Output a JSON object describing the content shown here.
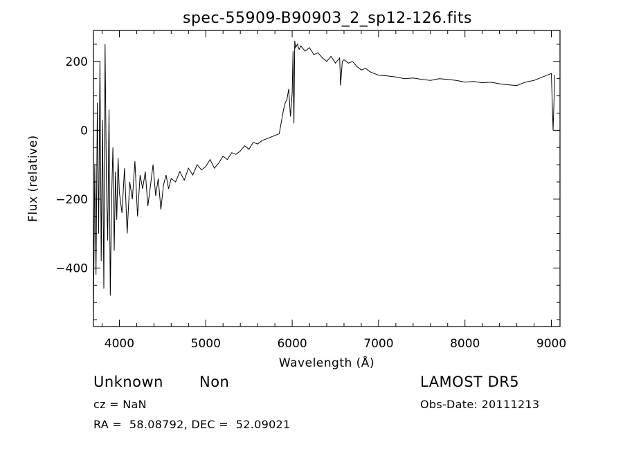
{
  "chart_data": {
    "type": "line",
    "title": "spec-55909-B90903_2_sp12-126.fits",
    "xlabel": "Wavelength (Å)",
    "ylabel": "Flux (relative)",
    "xlim": [
      3700,
      9100
    ],
    "ylim": [
      -570,
      290
    ],
    "xticks": [
      4000,
      5000,
      6000,
      7000,
      8000,
      9000
    ],
    "yticks": [
      -400,
      -200,
      0,
      200
    ],
    "series": [
      {
        "x": [
          3700,
          3715,
          3730,
          3745,
          3760,
          3775,
          3790,
          3805,
          3820,
          3835,
          3850,
          3865,
          3880,
          3895,
          3910,
          3925,
          3940,
          3955,
          3970,
          3985,
          4000,
          4030,
          4060,
          4090,
          4120,
          4150,
          4180,
          4210,
          4240,
          4270,
          4300,
          4330,
          4360,
          4390,
          4420,
          4450,
          4480,
          4510,
          4540,
          4570,
          4600,
          4650,
          4700,
          4750,
          4800,
          4850,
          4900,
          4950,
          5000,
          5050,
          5100,
          5150,
          5200,
          5250,
          5300,
          5350,
          5400,
          5450,
          5500,
          5550,
          5600,
          5650,
          5700,
          5750,
          5800,
          5850,
          5900,
          5920,
          5940,
          5960,
          5980,
          6000,
          6010,
          6020,
          6030,
          6040,
          6060,
          6080,
          6100,
          6150,
          6200,
          6250,
          6300,
          6350,
          6400,
          6450,
          6500,
          6550,
          6560,
          6580,
          6600,
          6650,
          6700,
          6750,
          6800,
          6850,
          6900,
          6950,
          7000,
          7100,
          7200,
          7300,
          7400,
          7500,
          7600,
          7700,
          7800,
          7900,
          8000,
          8100,
          8200,
          8300,
          8400,
          8500,
          8600,
          8700,
          8800,
          8900,
          9000,
          9020,
          9040
        ],
        "y": [
          -540,
          -100,
          -420,
          80,
          -300,
          200,
          -380,
          30,
          -460,
          250,
          -150,
          -320,
          60,
          -480,
          -200,
          -50,
          -350,
          -120,
          -260,
          -80,
          -180,
          -240,
          -110,
          -300,
          -150,
          -200,
          -90,
          -250,
          -130,
          -170,
          -120,
          -220,
          -160,
          -100,
          -190,
          -140,
          -230,
          -160,
          -130,
          -170,
          -140,
          -150,
          -120,
          -145,
          -110,
          -130,
          -100,
          -115,
          -105,
          -85,
          -110,
          -95,
          -75,
          -85,
          -65,
          -70,
          -60,
          -45,
          -55,
          -35,
          -40,
          -30,
          -25,
          -20,
          -15,
          -10,
          60,
          80,
          90,
          120,
          40,
          110,
          230,
          20,
          260,
          240,
          250,
          235,
          245,
          230,
          240,
          220,
          225,
          210,
          200,
          215,
          195,
          210,
          130,
          200,
          205,
          195,
          200,
          185,
          175,
          180,
          170,
          165,
          160,
          158,
          155,
          150,
          152,
          148,
          145,
          150,
          148,
          145,
          140,
          142,
          138,
          140,
          135,
          132,
          130,
          140,
          145,
          155,
          165,
          0,
          160
        ]
      }
    ]
  },
  "info": {
    "object_class": "Unknown",
    "subclass": "Non",
    "survey": "LAMOST DR5",
    "cz": "cz = NaN",
    "obs_date": "Obs-Date: 20111213",
    "coords": "RA =  58.08792, DEC =  52.09021"
  }
}
